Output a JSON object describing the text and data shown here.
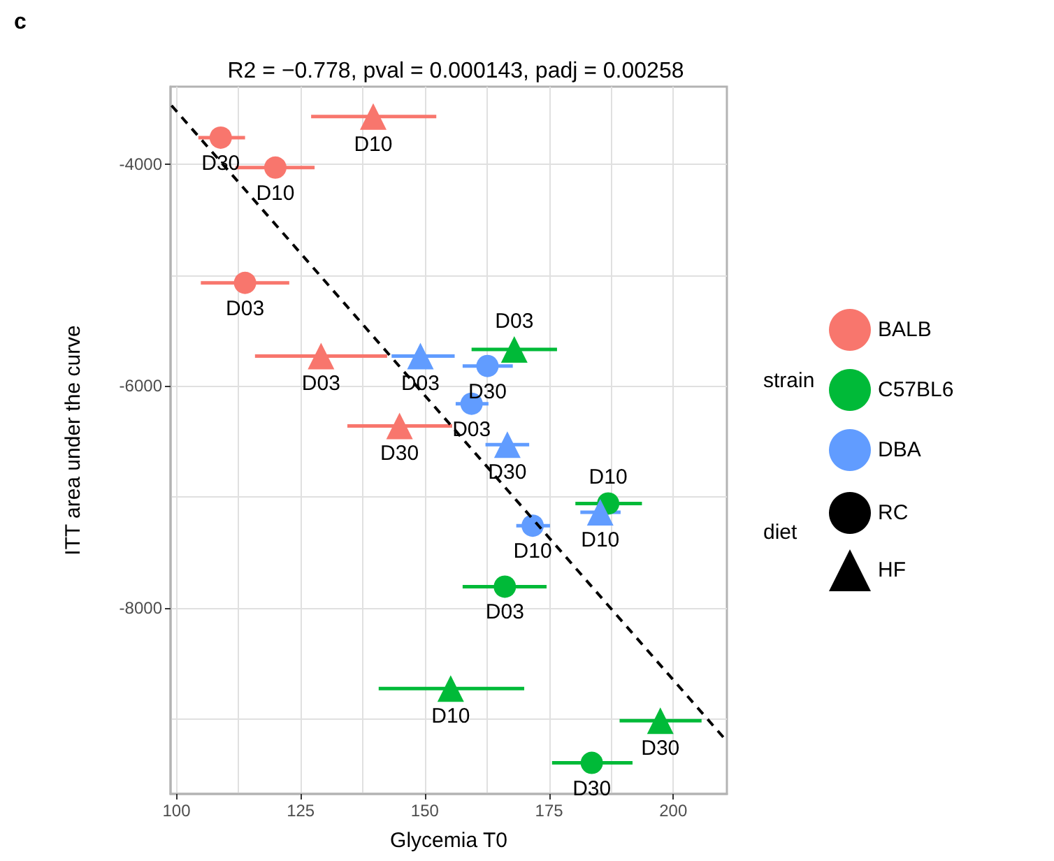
{
  "chart_data": {
    "type": "scatter",
    "title": "R2 = −0.778, pval = 0.000143, padj = 0.00258",
    "xlabel": "Glycemia T0",
    "ylabel": "ITT area under the curve",
    "legend_title": [
      "strain",
      "diet"
    ],
    "annotations": [
      "c"
    ],
    "xlim": [
      98.8,
      210.8
    ],
    "ylim": [
      -9680,
      -3300
    ],
    "xticks": [
      100,
      {
        "value": 112.5,
        "label": null
      },
      125,
      {
        "value": 137.5,
        "label": null
      },
      150,
      {
        "value": 162.5,
        "label": null
      },
      175,
      {
        "value": 187.5,
        "label": null
      },
      200
    ],
    "yticks": [
      {
        "value": -9000,
        "label": null
      },
      -8000,
      {
        "value": -7000,
        "label": null
      },
      -6000,
      {
        "value": -5000,
        "label": null
      },
      -4000
    ],
    "grid": true,
    "legend": "right",
    "series": [
      {
        "name": "BALB",
        "color": "#f8766d",
        "marker": "circle"
      },
      {
        "name": "C57BL6",
        "color": "#00ba38",
        "marker": "circle"
      },
      {
        "name": "DBA",
        "color": "#619cff",
        "marker": "circle"
      },
      {
        "name": "RC",
        "color": "#000000",
        "marker": "circle"
      },
      {
        "name": "HF",
        "color": "#000000",
        "marker": "triangle"
      },
      {
        "color": "#f8766d",
        "marker": "circle",
        "x": [
          108.9,
          119.9,
          113.8
        ],
        "values": [
          -3760,
          -4030,
          -5070
        ],
        "value_labels": [
          "D30",
          "D10",
          "D03"
        ],
        "xerrors": [
          [
            104.4,
            113.8
          ],
          [
            111.9,
            127.8
          ],
          [
            104.9,
            122.7
          ]
        ]
      },
      {
        "color": "#f8766d",
        "marker": "triangle",
        "x": [
          139.6,
          129.1,
          144.9
        ],
        "values": [
          -3570,
          -5730,
          -6360
        ],
        "value_labels": [
          "D10",
          "D03",
          "D30"
        ],
        "xerrors": [
          [
            127.1,
            152.3
          ],
          [
            115.8,
            142.4
          ],
          [
            134.4,
            155.5
          ]
        ]
      },
      {
        "color": "#00ba38",
        "marker": "circle",
        "x": [
          186.9,
          166.1,
          183.6
        ],
        "values": [
          -7060,
          -7810,
          -9400
        ],
        "value_labels": [
          "D10",
          "D03",
          "D30"
        ],
        "xerrors": [
          [
            180.3,
            193.7
          ],
          [
            157.6,
            174.5
          ],
          [
            175.6,
            191.8
          ]
        ]
      },
      {
        "color": "#00ba38",
        "marker": "triangle",
        "x": [
          168,
          155.2,
          197.4
        ],
        "values": [
          -5670,
          -8730,
          -9020
        ],
        "value_labels": [
          "D03",
          "D10",
          "D30"
        ],
        "xerrors": [
          [
            159.4,
            176.6
          ],
          [
            140.7,
            170
          ],
          [
            189.2,
            205.7
          ]
        ]
      },
      {
        "color": "#619cff",
        "marker": "circle",
        "x": [
          162.6,
          159.4,
          171.7
        ],
        "values": [
          -5820,
          -6160,
          -7260
        ],
        "value_labels": [
          "D30",
          "D03",
          "D10"
        ],
        "xerrors": [
          [
            157.6,
            167.7
          ],
          [
            156.2,
            162.8
          ],
          [
            168.4,
            175.2
          ]
        ]
      },
      {
        "color": "#619cff",
        "marker": "triangle",
        "x": [
          149.1,
          166.6,
          185.3
        ],
        "values": [
          -5730,
          -6530,
          -7140
        ],
        "value_labels": [
          "D03",
          "D30",
          "D10"
        ],
        "xerrors": [
          [
            143.3,
            156
          ],
          [
            162.2,
            171
          ],
          [
            181.3,
            189.4
          ]
        ]
      },
      {
        "type": "line",
        "color": "#000000",
        "x": [
          99,
          210.5
        ],
        "values": [
          -3470,
          -9190
        ],
        "line_style": "dashed",
        "marker": "none"
      }
    ]
  }
}
